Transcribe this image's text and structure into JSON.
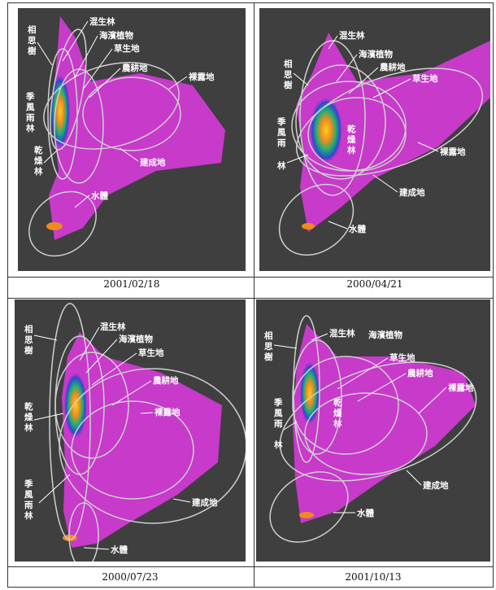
{
  "panels": [
    {
      "caption": "2001/02/18",
      "labels": {
        "mixed_forest": "混生林",
        "acacia": [
          "相",
          "思",
          "樹"
        ],
        "coastal": "海濱植物",
        "grassland": "草生地",
        "farmland": "農耕地",
        "bare": "裸露地",
        "monsoon": [
          "季",
          "風",
          "雨",
          "林"
        ],
        "dry_forest": [
          "乾",
          "燥",
          "林"
        ],
        "built": "建成地",
        "water": "水體"
      }
    },
    {
      "caption": "2000/04/21",
      "labels": {
        "mixed_forest": "混生林",
        "acacia": [
          "相",
          "思",
          "樹"
        ],
        "coastal": "海濱植物",
        "farmland": "農耕地",
        "grassland": "草生地",
        "monsoon": [
          "季",
          "風",
          "雨",
          "林"
        ],
        "dry_forest": [
          "乾",
          "燥",
          "林"
        ],
        "bare": "裸露地",
        "built": "建成地",
        "water": "水體"
      }
    },
    {
      "caption": "2000/07/23",
      "labels": {
        "acacia": [
          "相",
          "思",
          "樹"
        ],
        "mixed_forest": "混生林",
        "coastal": "海濱植物",
        "grassland": "草生地",
        "farmland": "農耕地",
        "bare": "裸露地",
        "dry_forest": [
          "乾",
          "燥",
          "林"
        ],
        "monsoon": [
          "季",
          "風",
          "雨",
          "林"
        ],
        "built": "建成地",
        "water": "水體"
      }
    },
    {
      "caption": "2001/10/13",
      "labels": {
        "acacia": [
          "相",
          "思",
          "樹"
        ],
        "mixed_forest": "混生林",
        "coastal": "海濱植物",
        "grassland": "草生地",
        "farmland": "農耕地",
        "bare": "裸露地",
        "monsoon": [
          "季",
          "風",
          "雨",
          "林"
        ],
        "dry_forest": [
          "乾",
          "燥",
          "林"
        ],
        "built": "建成地",
        "water": "水體"
      }
    }
  ],
  "colors": {
    "background": "#3f3f3f",
    "scatter": "#d23ad6",
    "ellipse": "#cfcfcf",
    "label": "#ffffff"
  }
}
